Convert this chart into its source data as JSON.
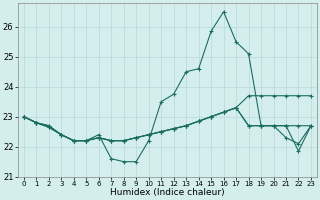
{
  "xlabel": "Humidex (Indice chaleur)",
  "background_color": "#d4eeee",
  "grid_color": "#b8d8d8",
  "line_color": "#1a6e60",
  "xlim": [
    -0.5,
    23.5
  ],
  "ylim": [
    21.0,
    26.8
  ],
  "xticks": [
    0,
    1,
    2,
    3,
    4,
    5,
    6,
    7,
    8,
    9,
    10,
    11,
    12,
    13,
    14,
    15,
    16,
    17,
    18,
    19,
    20,
    21,
    22,
    23
  ],
  "yticks": [
    21,
    22,
    23,
    24,
    25,
    26
  ],
  "series": [
    [
      23.0,
      22.8,
      22.7,
      22.4,
      22.2,
      22.2,
      22.4,
      21.6,
      21.5,
      21.5,
      22.2,
      23.5,
      23.75,
      24.5,
      24.6,
      25.85,
      26.5,
      25.5,
      25.1,
      22.7,
      22.7,
      22.7,
      21.85,
      22.7
    ],
    [
      23.0,
      22.8,
      22.7,
      22.4,
      22.2,
      22.2,
      22.3,
      22.2,
      22.2,
      22.3,
      22.4,
      22.5,
      22.6,
      22.7,
      22.85,
      23.0,
      23.15,
      23.3,
      23.7,
      23.7,
      23.7,
      23.7,
      23.7,
      23.7
    ],
    [
      23.0,
      22.8,
      22.65,
      22.4,
      22.2,
      22.2,
      22.3,
      22.2,
      22.2,
      22.3,
      22.4,
      22.5,
      22.6,
      22.7,
      22.85,
      23.0,
      23.15,
      23.3,
      22.7,
      22.7,
      22.7,
      22.7,
      22.7,
      22.7
    ],
    [
      23.0,
      22.8,
      22.65,
      22.4,
      22.2,
      22.2,
      22.3,
      22.2,
      22.2,
      22.3,
      22.4,
      22.5,
      22.6,
      22.7,
      22.85,
      23.0,
      23.15,
      23.3,
      22.7,
      22.7,
      22.7,
      22.3,
      22.1,
      22.7
    ]
  ]
}
